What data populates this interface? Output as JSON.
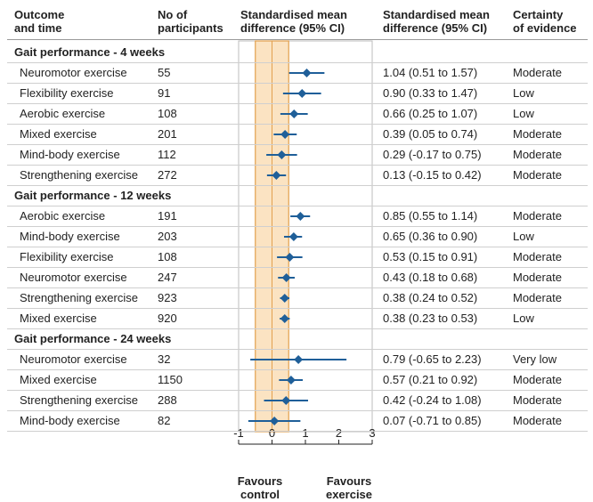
{
  "headers": {
    "outcome": [
      "Outcome",
      "and time"
    ],
    "participants": [
      "No of",
      "participants"
    ],
    "smd_plot": [
      "Standardised mean",
      "difference (95% CI)"
    ],
    "smd_text": [
      "Standardised mean",
      "difference (95% CI)"
    ],
    "certainty": [
      "Certainty",
      "of evidence"
    ]
  },
  "footer": {
    "left": [
      "Favours",
      "control"
    ],
    "right": [
      "Favours",
      "exercise"
    ]
  },
  "colors": {
    "marker": "#1f5f99",
    "band": "#fbe3c2",
    "band_border": "#e2a04e",
    "axis": "#222222"
  },
  "chart_data": {
    "type": "forest",
    "xlim": [
      -1,
      3
    ],
    "xticks": [
      -1,
      0,
      1,
      2,
      3
    ],
    "xtick_labels": [
      "-1",
      "0",
      "1",
      "2",
      "3"
    ],
    "band": [
      -0.5,
      0.5
    ],
    "groups": [
      {
        "title": "Gait performance - 4 weeks",
        "rows": [
          {
            "label": "Neuromotor exercise",
            "n": "55",
            "est": 1.04,
            "lo": 0.51,
            "hi": 1.57,
            "ci_text": "1.04 (0.51 to 1.57)",
            "certainty": "Moderate"
          },
          {
            "label": "Flexibility exercise",
            "n": "91",
            "est": 0.9,
            "lo": 0.33,
            "hi": 1.47,
            "ci_text": "0.90 (0.33 to 1.47)",
            "certainty": "Low"
          },
          {
            "label": "Aerobic exercise",
            "n": "108",
            "est": 0.66,
            "lo": 0.25,
            "hi": 1.07,
            "ci_text": "0.66 (0.25 to 1.07)",
            "certainty": "Low"
          },
          {
            "label": "Mixed exercise",
            "n": "201",
            "est": 0.39,
            "lo": 0.05,
            "hi": 0.74,
            "ci_text": "0.39 (0.05 to 0.74)",
            "certainty": "Moderate"
          },
          {
            "label": "Mind-body exercise",
            "n": "112",
            "est": 0.29,
            "lo": -0.17,
            "hi": 0.75,
            "ci_text": "0.29 (-0.17 to 0.75)",
            "certainty": "Moderate"
          },
          {
            "label": "Strengthening exercise",
            "n": "272",
            "est": 0.13,
            "lo": -0.15,
            "hi": 0.42,
            "ci_text": "0.13 (-0.15 to 0.42)",
            "certainty": "Moderate"
          }
        ]
      },
      {
        "title": "Gait performance - 12 weeks",
        "rows": [
          {
            "label": "Aerobic exercise",
            "n": "191",
            "est": 0.85,
            "lo": 0.55,
            "hi": 1.14,
            "ci_text": "0.85 (0.55 to 1.14)",
            "certainty": "Moderate"
          },
          {
            "label": "Mind-body exercise",
            "n": "203",
            "est": 0.65,
            "lo": 0.36,
            "hi": 0.9,
            "ci_text": "0.65 (0.36 to 0.90)",
            "certainty": "Low"
          },
          {
            "label": "Flexibility exercise",
            "n": "108",
            "est": 0.53,
            "lo": 0.15,
            "hi": 0.91,
            "ci_text": "0.53 (0.15 to 0.91)",
            "certainty": "Moderate"
          },
          {
            "label": "Neuromotor exercise",
            "n": "247",
            "est": 0.43,
            "lo": 0.18,
            "hi": 0.68,
            "ci_text": "0.43 (0.18 to 0.68)",
            "certainty": "Moderate"
          },
          {
            "label": "Strengthening exercise",
            "n": "923",
            "est": 0.38,
            "lo": 0.24,
            "hi": 0.52,
            "ci_text": "0.38 (0.24 to 0.52)",
            "certainty": "Moderate"
          },
          {
            "label": "Mixed exercise",
            "n": "920",
            "est": 0.38,
            "lo": 0.23,
            "hi": 0.53,
            "ci_text": "0.38 (0.23 to 0.53)",
            "certainty": "Low"
          }
        ]
      },
      {
        "title": "Gait performance - 24 weeks",
        "rows": [
          {
            "label": "Neuromotor exercise",
            "n": "32",
            "est": 0.79,
            "lo": -0.65,
            "hi": 2.23,
            "ci_text": "0.79 (-0.65 to 2.23)",
            "certainty": "Very low"
          },
          {
            "label": "Mixed exercise",
            "n": "1150",
            "est": 0.57,
            "lo": 0.21,
            "hi": 0.92,
            "ci_text": "0.57 (0.21 to 0.92)",
            "certainty": "Moderate"
          },
          {
            "label": "Strengthening exercise",
            "n": "288",
            "est": 0.42,
            "lo": -0.24,
            "hi": 1.08,
            "ci_text": "0.42 (-0.24 to 1.08)",
            "certainty": "Moderate"
          },
          {
            "label": "Mind-body exercise",
            "n": "82",
            "est": 0.07,
            "lo": -0.71,
            "hi": 0.85,
            "ci_text": "0.07 (-0.71 to 0.85)",
            "certainty": "Moderate"
          }
        ]
      }
    ]
  }
}
